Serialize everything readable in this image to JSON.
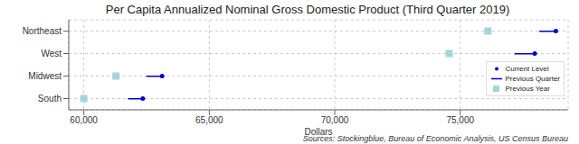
{
  "chart_data": {
    "type": "dot",
    "title": "Per Capita Annualized Nominal Gross Domestic Product (Third Quarter 2019)",
    "x_label": "Dollars",
    "source": "Sources: Stockingblue, Bureau of Economic Analysis, US Census Bureau",
    "orientation": "horizontal",
    "categories": [
      "Northeast",
      "West",
      "Midwest",
      "South"
    ],
    "series": [
      {
        "name": "Current Level",
        "color": "#0000c8",
        "marker": "circle",
        "values": [
          78810,
          77970,
          63120,
          62350
        ]
      },
      {
        "name": "Previous Quarter",
        "color": "#0000c8",
        "marker": "line",
        "values": [
          78150,
          77160,
          62490,
          61760
        ]
      },
      {
        "name": "Previous Year",
        "color": "#a8d4d8",
        "marker": "square",
        "values": [
          76100,
          74560,
          61280,
          60000
        ]
      }
    ],
    "xlim": [
      59400,
      79300
    ],
    "xticks": [
      {
        "value": 60000,
        "label": "60,000"
      },
      {
        "value": 65000,
        "label": "65,000"
      },
      {
        "value": 70000,
        "label": "70,000"
      },
      {
        "value": 75000,
        "label": "75,000"
      }
    ],
    "grid": true,
    "legend": "lower right"
  }
}
